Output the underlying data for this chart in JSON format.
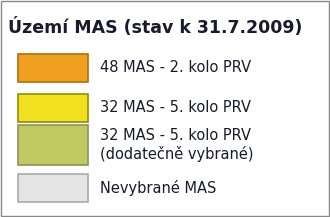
{
  "title": "Území MAS (stav k 31.7.2009)",
  "title_fontsize": 12.5,
  "title_fontweight": "bold",
  "background_color": "#ffffff",
  "legend_items": [
    {
      "label": "48 MAS - 2. kolo PRV",
      "face_color": "#F0A020",
      "edge_color": "#B07000",
      "multiline": false
    },
    {
      "label": "32 MAS - 5. kolo PRV",
      "face_color": "#F0E020",
      "edge_color": "#909000",
      "multiline": false
    },
    {
      "label": "32 MAS - 5. kolo PRV\n(dodatečně vybrané)",
      "face_color": "#C0C860",
      "edge_color": "#909060",
      "multiline": true
    },
    {
      "label": "Nevybrané MAS",
      "face_color": "#E4E4E4",
      "edge_color": "#AAAAAA",
      "multiline": false
    }
  ],
  "text_color": "#1a1a2e",
  "text_fontsize": 10.5,
  "border_color": "#888888"
}
